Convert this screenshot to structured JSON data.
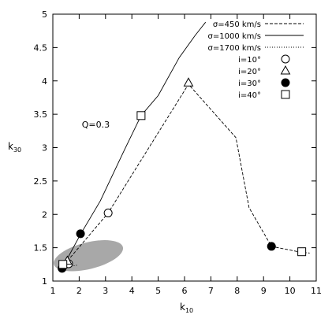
{
  "chart_data": {
    "type": "line",
    "title": "",
    "xlabel": {
      "base": "k",
      "sub": "10"
    },
    "ylabel": {
      "base": "k",
      "sub": "30"
    },
    "xlim": [
      1,
      11
    ],
    "ylim": [
      1,
      5
    ],
    "xticks": [
      "1",
      "2",
      "3",
      "4",
      "5",
      "6",
      "7",
      "8",
      "9",
      "10",
      "11"
    ],
    "yticks": [
      "1",
      "1.5",
      "2",
      "2.5",
      "3",
      "3.5",
      "4",
      "4.5",
      "5"
    ],
    "grid": false,
    "legend_position": "top-right",
    "annotation": "Q=0.3",
    "series": [
      {
        "name": "σ=450 km/s",
        "style": "dashed",
        "points": [
          [
            1.55,
            1.3
          ],
          [
            3.1,
            2.02
          ],
          [
            6.15,
            3.95
          ],
          [
            7.95,
            3.15
          ],
          [
            8.45,
            2.1
          ],
          [
            9.3,
            1.52
          ],
          [
            10.45,
            1.43
          ],
          [
            10.75,
            1.42
          ]
        ]
      },
      {
        "name": "σ=1000 km/s",
        "style": "solid",
        "points": [
          [
            1.35,
            1.19
          ],
          [
            2.05,
            1.7
          ],
          [
            2.8,
            2.2
          ],
          [
            3.7,
            2.95
          ],
          [
            4.35,
            3.48
          ],
          [
            5.0,
            3.78
          ],
          [
            5.8,
            4.35
          ],
          [
            6.4,
            4.68
          ],
          [
            6.8,
            4.88
          ]
        ]
      },
      {
        "name": "σ=1700 km/s",
        "style": "dotted",
        "points": [
          [
            1.35,
            1.2
          ],
          [
            1.65,
            1.22
          ],
          [
            1.95,
            1.24
          ]
        ]
      }
    ],
    "markers": [
      {
        "name": "i=10°",
        "symbol": "open-circle",
        "points": [
          [
            3.1,
            2.02
          ],
          [
            1.6,
            1.26
          ]
        ]
      },
      {
        "name": "i=20°",
        "symbol": "open-triangle",
        "points": [
          [
            6.15,
            3.97
          ],
          [
            1.55,
            1.3
          ]
        ]
      },
      {
        "name": "i=30°",
        "symbol": "filled-circle",
        "points": [
          [
            2.05,
            1.71
          ],
          [
            9.3,
            1.52
          ],
          [
            1.35,
            1.19
          ]
        ]
      },
      {
        "name": "i=40°",
        "symbol": "open-square",
        "points": [
          [
            4.35,
            3.48
          ],
          [
            10.45,
            1.44
          ],
          [
            1.38,
            1.25
          ]
        ]
      }
    ],
    "shaded_region": {
      "center": [
        2.35,
        1.38
      ],
      "radius": [
        1.35,
        0.2
      ],
      "color": "#a8a8a8"
    }
  }
}
